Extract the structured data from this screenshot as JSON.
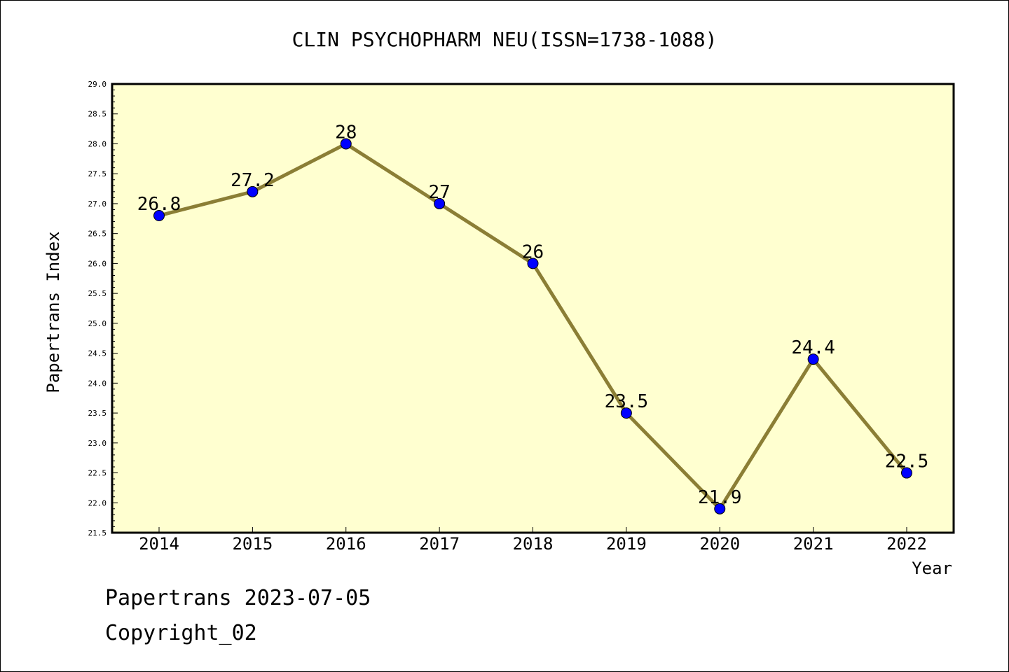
{
  "chart_data": {
    "type": "line",
    "title": "CLIN PSYCHOPHARM NEU(ISSN=1738-1088)",
    "xlabel": "Year",
    "ylabel": "Papertrans Index",
    "x": [
      "2014",
      "2015",
      "2016",
      "2017",
      "2018",
      "2019",
      "2020",
      "2021",
      "2022"
    ],
    "values": [
      26.8,
      27.2,
      28,
      27,
      26,
      23.5,
      21.9,
      24.4,
      22.5
    ],
    "data_labels": [
      "26.8",
      "27.2",
      "28",
      "27",
      "26",
      "23.5",
      "21.9",
      "24.4",
      "22.5"
    ],
    "ylim": [
      21.5,
      29.0
    ],
    "yticks": [
      "21.5",
      "22.0",
      "22.5",
      "23.0",
      "23.5",
      "24.0",
      "24.5",
      "25.0",
      "25.5",
      "26.0",
      "26.5",
      "27.0",
      "27.5",
      "28.0",
      "28.5",
      "29.0"
    ],
    "grid": false,
    "colors": {
      "plot_background": "#ffffd0",
      "line": "#8b7e35",
      "marker": "#0000ff"
    }
  },
  "footer": {
    "line1": "Papertrans 2023-07-05",
    "line2": "Copyright_02"
  }
}
